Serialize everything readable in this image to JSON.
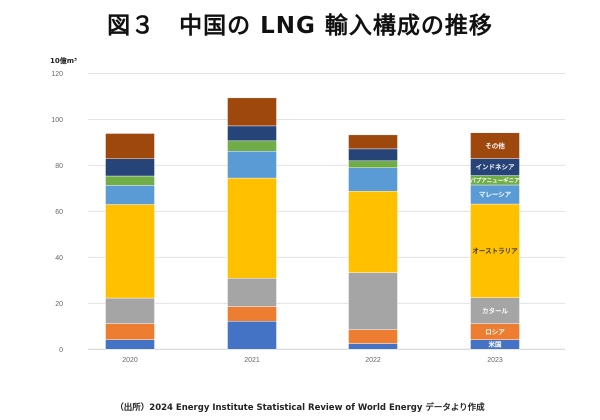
{
  "chart_data": {
    "type": "bar",
    "stacked": true,
    "title": "図３　中国の LNG 輸入構成の推移",
    "ylabel": "10億m³",
    "xlabel": "",
    "ylim": [
      0,
      120
    ],
    "yticks": [
      0,
      20,
      40,
      60,
      80,
      100,
      120
    ],
    "grid": true,
    "categories": [
      "2020",
      "2021",
      "2022",
      "2023"
    ],
    "series": [
      {
        "name": "米国",
        "color": "#4472C4",
        "values": [
          4.2,
          12.2,
          2.5,
          4.2
        ]
      },
      {
        "name": "ロシア",
        "color": "#ED7D31",
        "values": [
          7.0,
          6.4,
          6.1,
          7.0
        ]
      },
      {
        "name": "カタール",
        "color": "#A5A5A5",
        "values": [
          11.1,
          12.3,
          24.8,
          11.3
        ]
      },
      {
        "name": "オーストラリア",
        "color": "#FFC000",
        "values": [
          40.7,
          43.6,
          35.4,
          40.7
        ]
      },
      {
        "name": "マレーシア",
        "color": "#5B9BD5",
        "values": [
          8.3,
          11.7,
          10.2,
          8.3
        ]
      },
      {
        "name": "パプアニューギニア",
        "color": "#70AD47",
        "values": [
          4.1,
          4.5,
          3.0,
          4.1
        ]
      },
      {
        "name": "インドネシア",
        "color": "#264478",
        "values": [
          7.5,
          6.5,
          5.2,
          7.4
        ]
      },
      {
        "name": "その他",
        "color": "#9E480E",
        "values": [
          11.0,
          12.2,
          6.1,
          11.2
        ]
      }
    ],
    "legend": "inline-labels-on-last-bar"
  },
  "source": "（出所）2024 Energy Institute Statistical Review of World Energy データより作成"
}
